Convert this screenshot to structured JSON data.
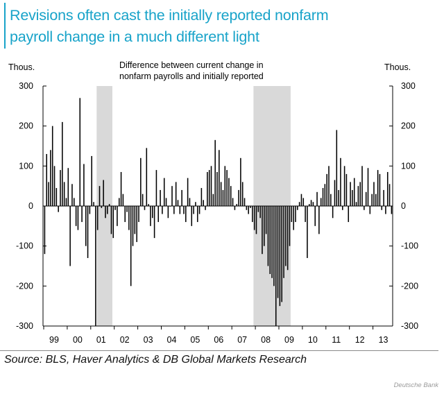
{
  "header": {
    "title_line1": "Revisions often cast the initially reported nonfarm",
    "title_line2": "payroll change in a much different light",
    "accent_color": "#18a3c9"
  },
  "footer": {
    "source": "Source: BLS, Haver Analytics & DB Global Markets Research",
    "brand": "Deutsche Bank"
  },
  "chart_data": {
    "type": "bar",
    "annotation": [
      "Difference between current change in",
      "nonfarm payrolls and initially reported"
    ],
    "y_unit_left": "Thous.",
    "y_unit_right": "Thous.",
    "ylim": [
      -300,
      300
    ],
    "yticks": [
      300,
      200,
      100,
      0,
      -100,
      -200,
      -300
    ],
    "xlim": [
      1999.0,
      2013.75
    ],
    "xticks": [
      {
        "label": "99",
        "x": 1999.0
      },
      {
        "label": "00",
        "x": 2000.0
      },
      {
        "label": "01",
        "x": 2001.0
      },
      {
        "label": "02",
        "x": 2002.0
      },
      {
        "label": "03",
        "x": 2003.0
      },
      {
        "label": "04",
        "x": 2004.0
      },
      {
        "label": "05",
        "x": 2005.0
      },
      {
        "label": "06",
        "x": 2006.0
      },
      {
        "label": "07",
        "x": 2007.0
      },
      {
        "label": "08",
        "x": 2008.0
      },
      {
        "label": "09",
        "x": 2009.0
      },
      {
        "label": "10",
        "x": 2010.0
      },
      {
        "label": "11",
        "x": 2011.0
      },
      {
        "label": "12",
        "x": 2012.0
      },
      {
        "label": "13",
        "x": 2013.0
      }
    ],
    "shaded_ranges": [
      [
        2001.25,
        2001.92
      ],
      [
        2007.92,
        2009.5
      ]
    ],
    "bar_color": "#000000",
    "shade_color": "#d9d9d9",
    "series": [
      {
        "name": "Difference between current change in nonfarm payrolls and initially reported",
        "x_start": 1999.0,
        "x_step": 0.08333,
        "values": [
          -120,
          130,
          60,
          140,
          200,
          100,
          45,
          -15,
          90,
          210,
          60,
          20,
          95,
          -150,
          55,
          20,
          -50,
          -60,
          270,
          -40,
          105,
          -100,
          -130,
          -20,
          125,
          10,
          -300,
          -60,
          50,
          -5,
          65,
          -30,
          -20,
          5,
          -70,
          -80,
          -10,
          -50,
          20,
          85,
          30,
          -40,
          -15,
          -60,
          -200,
          -100,
          -70,
          -90,
          -40,
          120,
          30,
          -10,
          145,
          5,
          -50,
          -30,
          -80,
          90,
          -40,
          40,
          -20,
          70,
          20,
          -30,
          0,
          50,
          -20,
          60,
          15,
          -20,
          40,
          -20,
          -40,
          70,
          20,
          -50,
          -20,
          10,
          -40,
          -20,
          45,
          15,
          -10,
          85,
          90,
          100,
          30,
          165,
          85,
          140,
          60,
          40,
          100,
          90,
          70,
          50,
          20,
          -10,
          5,
          40,
          120,
          60,
          20,
          -10,
          -20,
          -5,
          -40,
          -60,
          -70,
          -15,
          -30,
          -120,
          -100,
          -70,
          -150,
          -170,
          -180,
          -200,
          -300,
          -230,
          -250,
          -240,
          -180,
          -150,
          -160,
          -100,
          -40,
          -60,
          -40,
          -10,
          10,
          30,
          20,
          -40,
          -130,
          5,
          15,
          10,
          -50,
          35,
          -70,
          20,
          45,
          55,
          80,
          100,
          30,
          -30,
          65,
          190,
          40,
          120,
          -10,
          100,
          80,
          -40,
          60,
          40,
          70,
          10,
          50,
          60,
          100,
          -10,
          35,
          95,
          -20,
          30,
          60,
          30,
          90,
          80,
          -10,
          40,
          -20,
          85,
          55,
          -20
        ]
      }
    ]
  }
}
